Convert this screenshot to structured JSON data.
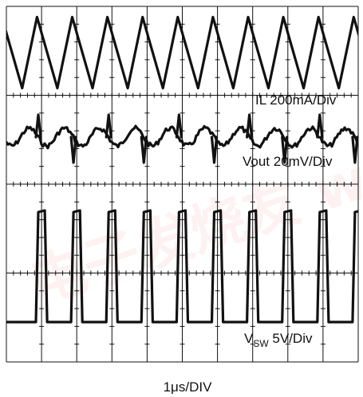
{
  "chart_data": {
    "type": "line",
    "title": "",
    "xlabel": "1μs/DIV",
    "time_per_div_us": 1,
    "divisions": {
      "x": 10,
      "y": 4
    },
    "grid": true,
    "series": [
      {
        "name": "IL 200mA/Div",
        "label_main": "IL 200mA/Div",
        "waveform": "triangle",
        "scale": "200mA/Div",
        "period_us": 1.0,
        "peak_to_peak_div": 0.8
      },
      {
        "name": "Vout 20mV/Div",
        "label_main": "Vout 20mV/Div",
        "waveform": "ripple with switching spikes",
        "scale": "20mV/Div",
        "period_us": 1.0,
        "ripple_pp_div": 0.2
      },
      {
        "name": "VSW 5V/Div",
        "label_main": "V",
        "label_sub": "SW",
        "label_rest": " 5V/Div",
        "waveform": "square",
        "scale": "5V/Div",
        "period_us": 1.0,
        "duty_cycle": 0.32,
        "amplitude_div": 1.2
      }
    ]
  },
  "watermark": {
    "text": "电子发烧友  www.elecfans.com",
    "color": "#e85a5a"
  }
}
